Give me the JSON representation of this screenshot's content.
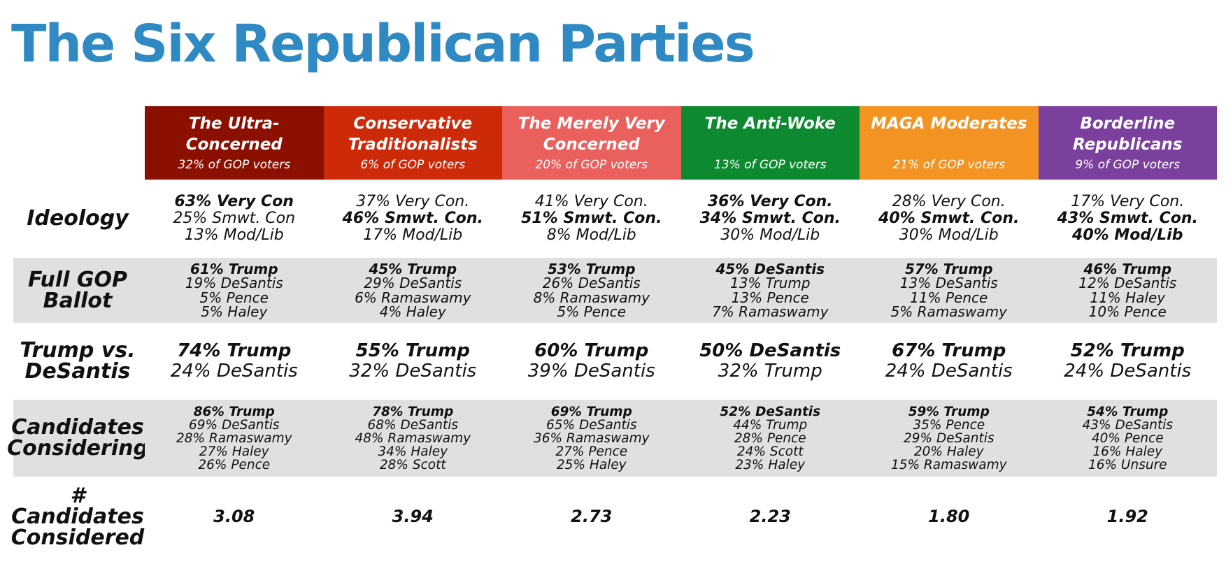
{
  "title": "The Six Republican Parties",
  "row_labels": {
    "ideology": "Ideology",
    "ballot": "Full GOP Ballot",
    "trump_vs": "Trump vs. DeSantis",
    "considering": "Candidates Considering",
    "num_considered": "# Candidates Considered"
  },
  "colors": [
    "#8b1002",
    "#cc2a08",
    "#ea605c",
    "#0d8a2f",
    "#f39322",
    "#7b3f9e"
  ],
  "groups": [
    {
      "name": "The Ultra-Concerned",
      "share": "32% of GOP voters",
      "ideology": [
        "63% Very Con",
        "25% Smwt. Con",
        "13% Mod/Lib"
      ],
      "ideology_bold": [
        0
      ],
      "ballot": [
        "61% Trump",
        "19% DeSantis",
        "5% Pence",
        "5% Haley"
      ],
      "trump_vs": [
        "74% Trump",
        "24% DeSantis"
      ],
      "considering": [
        "86% Trump",
        "69% DeSantis",
        "28% Ramaswamy",
        "27% Haley",
        "26% Pence"
      ],
      "num_considered": "3.08"
    },
    {
      "name": "Conservative Traditionalists",
      "share": "6% of GOP voters",
      "ideology": [
        "37% Very Con.",
        "46% Smwt. Con.",
        "17% Mod/Lib"
      ],
      "ideology_bold": [
        1
      ],
      "ballot": [
        "45% Trump",
        "29% DeSantis",
        "6% Ramaswamy",
        "4% Haley"
      ],
      "trump_vs": [
        "55% Trump",
        "32% DeSantis"
      ],
      "considering": [
        "78% Trump",
        "68% DeSantis",
        "48% Ramaswamy",
        "34% Haley",
        "28% Scott"
      ],
      "num_considered": "3.94"
    },
    {
      "name": "The Merely Very Concerned",
      "share": "20% of GOP voters",
      "ideology": [
        "41% Very Con.",
        "51% Smwt. Con.",
        "8% Mod/Lib"
      ],
      "ideology_bold": [
        1
      ],
      "ballot": [
        "53% Trump",
        "26% DeSantis",
        "8% Ramaswamy",
        "5% Pence"
      ],
      "trump_vs": [
        "60% Trump",
        "39% DeSantis"
      ],
      "considering": [
        "69% Trump",
        "65% DeSantis",
        "36% Ramaswamy",
        "27% Pence",
        "25% Haley"
      ],
      "num_considered": "2.73"
    },
    {
      "name": "The Anti-Woke",
      "share": "13% of GOP voters",
      "ideology": [
        "36% Very Con.",
        "34% Smwt. Con.",
        "30% Mod/Lib"
      ],
      "ideology_bold": [
        0,
        1
      ],
      "ballot": [
        "45% DeSantis",
        "13% Trump",
        "13% Pence",
        "7% Ramaswamy"
      ],
      "trump_vs": [
        "50% DeSantis",
        "32% Trump"
      ],
      "considering": [
        "52% DeSantis",
        "44% Trump",
        "28% Pence",
        "24% Scott",
        "23% Haley"
      ],
      "num_considered": "2.23"
    },
    {
      "name": "MAGA Moderates",
      "share": "21% of GOP voters",
      "ideology": [
        "28% Very Con.",
        "40% Smwt. Con.",
        "30% Mod/Lib"
      ],
      "ideology_bold": [
        1
      ],
      "ballot": [
        "57% Trump",
        "13% DeSantis",
        "11% Pence",
        "5% Ramaswamy"
      ],
      "trump_vs": [
        "67% Trump",
        "24% DeSantis"
      ],
      "considering": [
        "59% Trump",
        "35% Pence",
        "29% DeSantis",
        "20% Haley",
        "15% Ramaswamy"
      ],
      "num_considered": "1.80"
    },
    {
      "name": "Borderline Republicans",
      "share": "9% of GOP voters",
      "ideology": [
        "17% Very Con.",
        "43% Smwt. Con.",
        "40% Mod/Lib"
      ],
      "ideology_bold": [
        1,
        2
      ],
      "ballot": [
        "46% Trump",
        "12% DeSantis",
        "11% Haley",
        "10% Pence"
      ],
      "trump_vs": [
        "52% Trump",
        "24% DeSantis"
      ],
      "considering": [
        "54% Trump",
        "43% DeSantis",
        "40% Pence",
        "16% Haley",
        "16% Unsure"
      ],
      "num_considered": "1.92"
    }
  ]
}
